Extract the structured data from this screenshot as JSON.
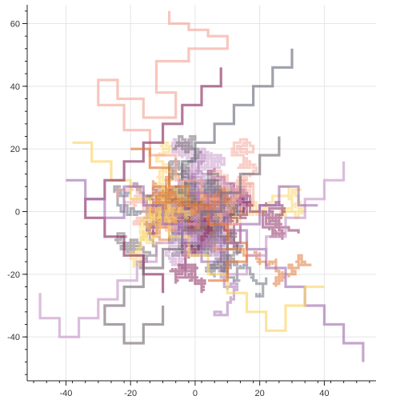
{
  "chart_data": {
    "type": "line",
    "title": "",
    "xlabel": "",
    "ylabel": "",
    "xlim": [
      -52,
      56
    ],
    "ylim": [
      -54,
      66
    ],
    "grid": true,
    "x_ticks": [
      {
        "value": -40,
        "label": "-40"
      },
      {
        "value": -20,
        "label": "-20"
      },
      {
        "value": 0,
        "label": "0"
      },
      {
        "value": 20,
        "label": "20"
      },
      {
        "value": 40,
        "label": "40"
      }
    ],
    "y_ticks": [
      {
        "value": -40,
        "label": "-40"
      },
      {
        "value": -20,
        "label": "-20"
      },
      {
        "value": 0,
        "label": "0"
      },
      {
        "value": 20,
        "label": "20"
      },
      {
        "value": 40,
        "label": "40"
      },
      {
        "value": 60,
        "label": "60"
      }
    ],
    "walk_colors": [
      "#f4a79a",
      "#fbd56a",
      "#a574b3",
      "#7a6f78",
      "#8c2e63",
      "#e0783a",
      "#c99aca",
      "#6b6f80"
    ],
    "series": [
      {
        "color": "#f4a79a",
        "points": [
          [
            -8,
            64
          ],
          [
            -8,
            60
          ],
          [
            -2,
            60
          ],
          [
            -2,
            58
          ],
          [
            4,
            58
          ],
          [
            4,
            56
          ],
          [
            10,
            56
          ],
          [
            10,
            52
          ],
          [
            -2,
            52
          ],
          [
            -2,
            48
          ],
          [
            -12,
            48
          ],
          [
            -12,
            38
          ],
          [
            -6,
            38
          ],
          [
            -6,
            30
          ],
          [
            -16,
            30
          ],
          [
            -16,
            36
          ],
          [
            -24,
            36
          ],
          [
            -24,
            42
          ],
          [
            -30,
            42
          ],
          [
            -30,
            34
          ],
          [
            -22,
            34
          ],
          [
            -22,
            26
          ],
          [
            -14,
            26
          ],
          [
            -14,
            18
          ],
          [
            -6,
            18
          ],
          [
            -6,
            10
          ],
          [
            2,
            10
          ],
          [
            2,
            4
          ],
          [
            8,
            4
          ],
          [
            8,
            -4
          ],
          [
            14,
            -4
          ],
          [
            14,
            -10
          ]
        ]
      },
      {
        "color": "#a574b3",
        "points": [
          [
            52,
            -48
          ],
          [
            52,
            -42
          ],
          [
            46,
            -42
          ],
          [
            46,
            -36
          ],
          [
            40,
            -36
          ],
          [
            40,
            -30
          ],
          [
            34,
            -30
          ],
          [
            34,
            -24
          ],
          [
            28,
            -24
          ],
          [
            28,
            -18
          ],
          [
            22,
            -18
          ],
          [
            22,
            -12
          ],
          [
            16,
            -12
          ],
          [
            16,
            -6
          ],
          [
            10,
            -6
          ],
          [
            10,
            0
          ],
          [
            4,
            0
          ],
          [
            4,
            6
          ],
          [
            -2,
            6
          ]
        ]
      },
      {
        "color": "#c99aca",
        "points": [
          [
            -48,
            -26
          ],
          [
            -48,
            -34
          ],
          [
            -42,
            -34
          ],
          [
            -42,
            -40
          ],
          [
            -36,
            -40
          ],
          [
            -36,
            -34
          ],
          [
            -30,
            -34
          ],
          [
            -30,
            -28
          ],
          [
            -24,
            -28
          ],
          [
            -24,
            -22
          ],
          [
            -18,
            -22
          ],
          [
            -18,
            -16
          ],
          [
            -12,
            -16
          ],
          [
            -12,
            -10
          ],
          [
            -6,
            -10
          ],
          [
            -6,
            -4
          ],
          [
            0,
            -4
          ]
        ]
      },
      {
        "color": "#6b6f80",
        "points": [
          [
            30,
            52
          ],
          [
            30,
            46
          ],
          [
            24,
            46
          ],
          [
            24,
            40
          ],
          [
            18,
            40
          ],
          [
            18,
            34
          ],
          [
            12,
            34
          ],
          [
            12,
            28
          ],
          [
            6,
            28
          ],
          [
            6,
            22
          ],
          [
            0,
            22
          ],
          [
            0,
            16
          ],
          [
            -4,
            16
          ],
          [
            -4,
            10
          ]
        ]
      },
      {
        "color": "#fbd56a",
        "points": [
          [
            -38,
            22
          ],
          [
            -32,
            22
          ],
          [
            -32,
            16
          ],
          [
            -26,
            16
          ],
          [
            -26,
            10
          ],
          [
            -20,
            10
          ],
          [
            -20,
            4
          ],
          [
            -14,
            4
          ],
          [
            -14,
            -2
          ],
          [
            -8,
            -2
          ],
          [
            -8,
            -8
          ],
          [
            -2,
            -8
          ],
          [
            -2,
            -14
          ],
          [
            4,
            -14
          ],
          [
            4,
            -20
          ],
          [
            10,
            -20
          ],
          [
            10,
            -26
          ],
          [
            16,
            -26
          ],
          [
            16,
            -32
          ],
          [
            22,
            -32
          ],
          [
            22,
            -38
          ],
          [
            28,
            -38
          ],
          [
            28,
            -30
          ],
          [
            34,
            -30
          ],
          [
            34,
            -24
          ],
          [
            40,
            -24
          ]
        ]
      },
      {
        "color": "#c99aca",
        "points": [
          [
            46,
            16
          ],
          [
            46,
            10
          ],
          [
            40,
            10
          ],
          [
            40,
            4
          ],
          [
            34,
            4
          ],
          [
            34,
            -2
          ],
          [
            28,
            -2
          ],
          [
            28,
            -8
          ],
          [
            22,
            -8
          ],
          [
            22,
            -14
          ],
          [
            16,
            -14
          ],
          [
            16,
            -20
          ],
          [
            10,
            -20
          ]
        ]
      },
      {
        "color": "#8c2e63",
        "points": [
          [
            8,
            46
          ],
          [
            8,
            40
          ],
          [
            2,
            40
          ],
          [
            2,
            34
          ],
          [
            -4,
            34
          ],
          [
            -4,
            28
          ],
          [
            -10,
            28
          ],
          [
            -10,
            22
          ],
          [
            -16,
            22
          ],
          [
            -16,
            16
          ],
          [
            -22,
            16
          ],
          [
            -22,
            10
          ],
          [
            -28,
            10
          ],
          [
            -28,
            4
          ],
          [
            -34,
            4
          ],
          [
            -34,
            -2
          ],
          [
            -28,
            -2
          ],
          [
            -28,
            -8
          ],
          [
            -22,
            -8
          ],
          [
            -22,
            -14
          ],
          [
            -16,
            -14
          ],
          [
            -16,
            -20
          ],
          [
            -10,
            -20
          ],
          [
            -10,
            -26
          ]
        ]
      },
      {
        "color": "#e0783a",
        "points": [
          [
            -20,
            20
          ],
          [
            -14,
            20
          ],
          [
            -14,
            14
          ],
          [
            -8,
            14
          ],
          [
            -8,
            8
          ],
          [
            -2,
            8
          ],
          [
            -2,
            2
          ],
          [
            4,
            2
          ],
          [
            4,
            -4
          ],
          [
            10,
            -4
          ],
          [
            10,
            -10
          ],
          [
            16,
            -10
          ],
          [
            16,
            -16
          ],
          [
            10,
            -16
          ],
          [
            10,
            -22
          ],
          [
            4,
            -22
          ]
        ]
      },
      {
        "color": "#7a6f78",
        "points": [
          [
            -10,
            -30
          ],
          [
            -10,
            -36
          ],
          [
            -16,
            -36
          ],
          [
            -16,
            -42
          ],
          [
            -22,
            -42
          ],
          [
            -22,
            -36
          ],
          [
            -28,
            -36
          ],
          [
            -28,
            -30
          ],
          [
            -22,
            -30
          ],
          [
            -22,
            -24
          ],
          [
            -16,
            -24
          ],
          [
            -16,
            -18
          ],
          [
            -10,
            -18
          ],
          [
            -10,
            -12
          ],
          [
            -4,
            -12
          ],
          [
            -4,
            -6
          ],
          [
            2,
            -6
          ],
          [
            2,
            0
          ],
          [
            8,
            0
          ],
          [
            8,
            6
          ],
          [
            14,
            6
          ],
          [
            14,
            12
          ],
          [
            20,
            12
          ],
          [
            20,
            18
          ],
          [
            26,
            18
          ],
          [
            26,
            24
          ]
        ]
      },
      {
        "color": "#a574b3",
        "points": [
          [
            -40,
            10
          ],
          [
            -34,
            10
          ],
          [
            -34,
            4
          ],
          [
            -28,
            4
          ],
          [
            -28,
            -2
          ],
          [
            -22,
            -2
          ],
          [
            -22,
            8
          ],
          [
            -16,
            8
          ],
          [
            -16,
            2
          ],
          [
            -10,
            2
          ],
          [
            -10,
            -4
          ],
          [
            -4,
            -4
          ],
          [
            -4,
            -10
          ],
          [
            2,
            -10
          ],
          [
            2,
            -16
          ],
          [
            8,
            -16
          ],
          [
            8,
            -10
          ],
          [
            14,
            -10
          ],
          [
            14,
            -4
          ],
          [
            20,
            -4
          ],
          [
            20,
            2
          ],
          [
            26,
            2
          ],
          [
            26,
            8
          ],
          [
            32,
            8
          ],
          [
            32,
            2
          ],
          [
            38,
            2
          ]
        ]
      }
    ]
  }
}
